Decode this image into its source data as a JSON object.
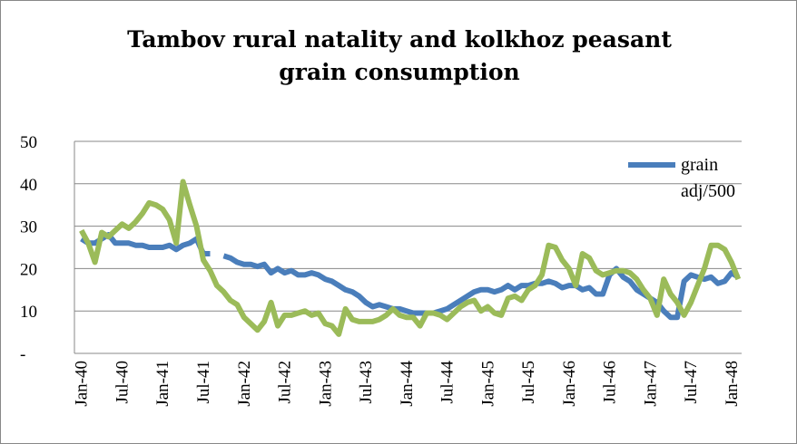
{
  "chart_data": {
    "type": "line",
    "title": "Tambov rural natality and kolkhoz peasant grain consumption",
    "categories": [
      "Jan-40",
      null,
      null,
      null,
      null,
      null,
      "Jul-40",
      null,
      null,
      null,
      null,
      null,
      "Jan-41",
      null,
      null,
      null,
      null,
      null,
      "Jul-41",
      null,
      null,
      null,
      null,
      null,
      "Jan-42",
      null,
      null,
      null,
      null,
      null,
      "Jul-42",
      null,
      null,
      null,
      null,
      null,
      "Jan-43",
      null,
      null,
      null,
      null,
      null,
      "Jul-43",
      null,
      null,
      null,
      null,
      null,
      "Jan-44",
      null,
      null,
      null,
      null,
      null,
      "Jul-44",
      null,
      null,
      null,
      null,
      null,
      "Jan-45",
      null,
      null,
      null,
      null,
      null,
      "Jul-45",
      null,
      null,
      null,
      null,
      null,
      "Jan-46",
      null,
      null,
      null,
      null,
      null,
      "Jul-46",
      null,
      null,
      null,
      null,
      null,
      "Jan-47",
      null,
      null,
      null,
      null,
      null,
      "Jul-47",
      null,
      null,
      null,
      null,
      null,
      "Jan-48",
      null
    ],
    "series": [
      {
        "name": "grain adj/500",
        "color": "#4a7ebb",
        "values": [
          27,
          26,
          26,
          27,
          28,
          26,
          26,
          26,
          25.5,
          25.5,
          25,
          25,
          25,
          25.5,
          24.5,
          25.5,
          26,
          27,
          23.5,
          23.5,
          null,
          23,
          22.5,
          21.5,
          21,
          21,
          20.5,
          21,
          19,
          20,
          19,
          19.5,
          18.5,
          18.5,
          19,
          18.5,
          17.5,
          17,
          16,
          15,
          14.5,
          13.5,
          12,
          11,
          11.5,
          11,
          10.5,
          10.5,
          10,
          9.5,
          9.5,
          9.5,
          9.5,
          10,
          10.5,
          11.5,
          12.5,
          13.5,
          14.5,
          15,
          15,
          14.5,
          15,
          16,
          15,
          16,
          16,
          16.5,
          16.5,
          17,
          16.5,
          15.5,
          16,
          16,
          15,
          15.5,
          14,
          14,
          18.5,
          20,
          18,
          17,
          15,
          14,
          13,
          12,
          10,
          8.5,
          8.5,
          17,
          18.5,
          18,
          17.5,
          18,
          16.5,
          17,
          19,
          18
        ]
      },
      {
        "color": "#9bbb59",
        "values": [
          29,
          26,
          21.5,
          28.5,
          27.5,
          29,
          30.5,
          29.5,
          31,
          33,
          35.5,
          35,
          34,
          31.5,
          26,
          40.5,
          35,
          30,
          22,
          19.5,
          16,
          14.5,
          12.5,
          11.5,
          8.5,
          7,
          5.5,
          7.5,
          12,
          6.5,
          9,
          9,
          9.5,
          10,
          9,
          9.5,
          7,
          6.5,
          4.5,
          10.5,
          8,
          7.5,
          7.5,
          7.5,
          8,
          9,
          10.5,
          9,
          8.5,
          8.5,
          6.5,
          9.5,
          9.5,
          9,
          8,
          9.5,
          11,
          12,
          12.5,
          10,
          11,
          9.5,
          9,
          13,
          13.5,
          12.5,
          15,
          16,
          18.5,
          25.5,
          25,
          22,
          20,
          16,
          23.5,
          22.5,
          19.5,
          18.5,
          19,
          19.5,
          19.5,
          19,
          17.5,
          15,
          13,
          9,
          17.5,
          14,
          12,
          9,
          12,
          16,
          20,
          25.5,
          25.5,
          24.5,
          21.5,
          17.5
        ]
      }
    ],
    "ylim": [
      0,
      50
    ],
    "yticks": [
      {
        "value": 0,
        "label": "-"
      },
      10,
      20,
      30,
      40,
      50
    ],
    "grid": true
  }
}
